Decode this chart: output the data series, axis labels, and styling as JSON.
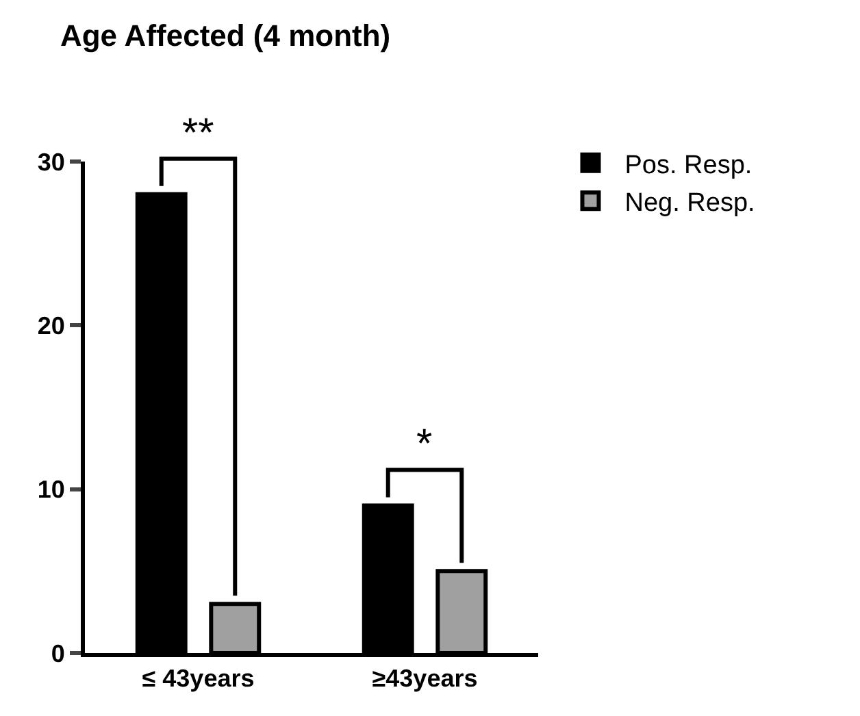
{
  "chart_data": {
    "type": "bar",
    "title": "Age Affected (4 month)",
    "categories": [
      "≤ 43years",
      "≥43years"
    ],
    "series": [
      {
        "name": "Pos. Resp.",
        "color": "#000000",
        "values": [
          28,
          9
        ]
      },
      {
        "name": "Neg. Resp.",
        "color": "#a0a0a0",
        "values": [
          3,
          5
        ]
      }
    ],
    "ylim": [
      0,
      30
    ],
    "yticks": [
      0,
      10,
      20,
      30
    ],
    "grid": false,
    "legend": "top right",
    "annotations": [
      "**",
      "*"
    ]
  }
}
